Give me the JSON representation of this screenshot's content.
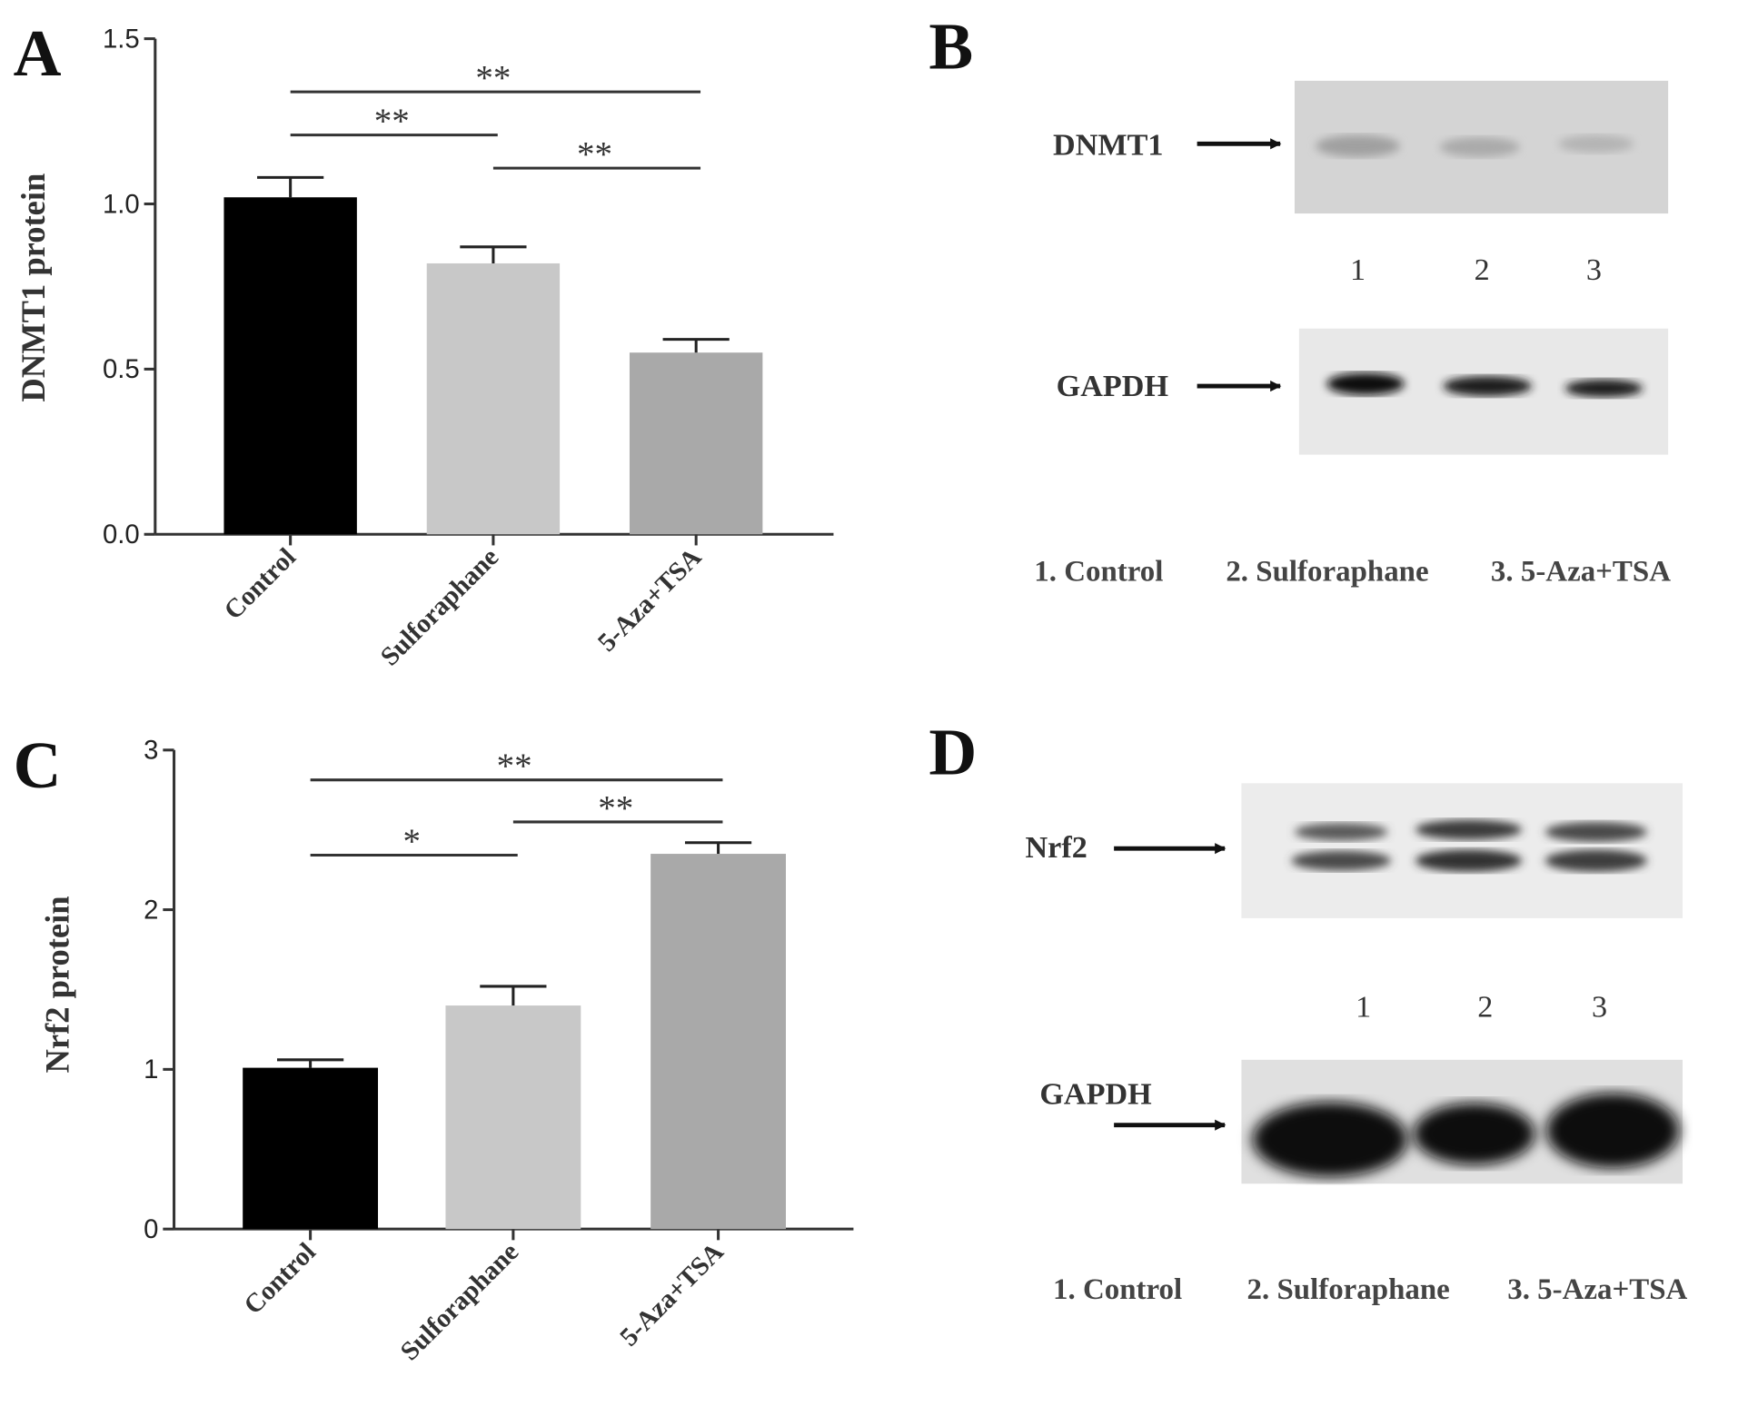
{
  "chart_data": [
    {
      "type": "bar",
      "panel_label": "A",
      "ylabel": "DNMT1 protein",
      "categories": [
        "Control",
        "Sulforaphane",
        "5-Aza+TSA"
      ],
      "values": [
        1.02,
        0.82,
        0.55
      ],
      "errors": [
        0.06,
        0.05,
        0.04
      ],
      "colors": [
        "#000000",
        "#c8c8c8",
        "#a9a9a9"
      ],
      "ylim": [
        0,
        1.5
      ],
      "yticks": [
        {
          "value": 0,
          "label": "0.0"
        },
        0.5,
        {
          "value": 1,
          "label": "1.0"
        },
        1.5
      ],
      "annotations": [
        {
          "text": "**"
        },
        {
          "text": "**"
        },
        {
          "text": "**"
        }
      ]
    },
    {
      "type": "bar",
      "panel_label": "C",
      "ylabel": "Nrf2 protein",
      "categories": [
        "Control",
        "Sulforaphane",
        "5-Aza+TSA"
      ],
      "values": [
        1.01,
        1.4,
        2.35
      ],
      "errors": [
        0.05,
        0.12,
        0.07
      ],
      "colors": [
        "#000000",
        "#c8c8c8",
        "#a9a9a9"
      ],
      "ylim": [
        0,
        3
      ],
      "yticks": [
        0,
        1,
        2,
        3
      ],
      "annotations": [
        {
          "text": "**"
        },
        {
          "text": "*"
        },
        {
          "text": "**"
        }
      ]
    }
  ],
  "blots": [
    {
      "panel_label": "B",
      "bands": [
        "DNMT1",
        "GAPDH"
      ],
      "lanes": [
        "1",
        "2",
        "3"
      ],
      "legend": [
        "1. Control",
        "2. Sulforaphane",
        "3. 5-Aza+TSA"
      ]
    },
    {
      "panel_label": "D",
      "bands": [
        "Nrf2",
        "GAPDH"
      ],
      "lanes": [
        "1",
        "2",
        "3"
      ],
      "legend": [
        "1. Control",
        "2. Sulforaphane",
        "3. 5-Aza+TSA"
      ]
    }
  ]
}
